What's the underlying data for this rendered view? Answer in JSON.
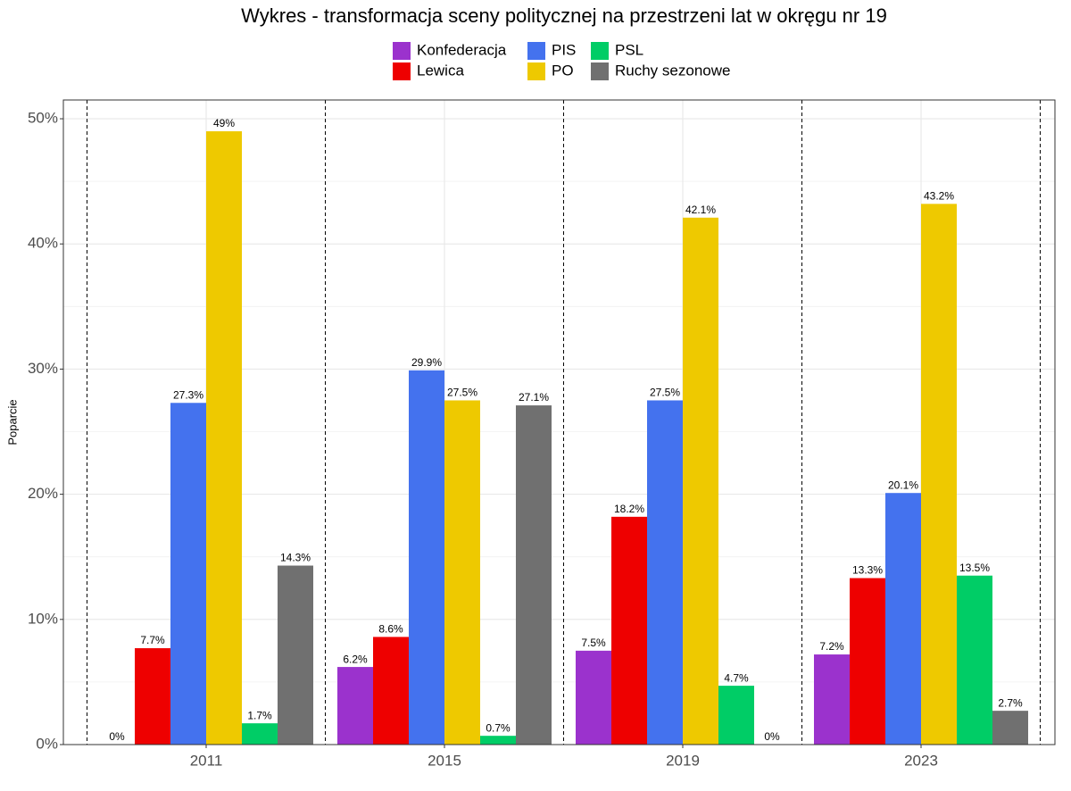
{
  "chart_data": {
    "type": "bar",
    "title": "Wykres - transformacja sceny politycznej na przestrzeni lat w okręgu nr 19",
    "y_label": "Poparcie",
    "categories": [
      "2011",
      "2015",
      "2019",
      "2023"
    ],
    "series": [
      {
        "name": "Konfederacja",
        "color": "#9b32cd",
        "values": [
          0,
          6.2,
          7.5,
          7.2
        ],
        "value_labels": [
          "0%",
          "6.2%",
          "7.5%",
          "7.2%"
        ]
      },
      {
        "name": "Lewica",
        "color": "#ee0000",
        "values": [
          7.7,
          8.6,
          18.2,
          13.3
        ],
        "value_labels": [
          "7.7%",
          "8.6%",
          "18.2%",
          "13.3%"
        ]
      },
      {
        "name": "PIS",
        "color": "#4472ee",
        "values": [
          27.3,
          29.9,
          27.5,
          20.1
        ],
        "value_labels": [
          "27.3%",
          "29.9%",
          "27.5%",
          "20.1%"
        ]
      },
      {
        "name": "PO",
        "color": "#eec900",
        "values": [
          49,
          27.5,
          42.1,
          43.2
        ],
        "value_labels": [
          "49%",
          "27.5%",
          "42.1%",
          "43.2%"
        ]
      },
      {
        "name": "PSL",
        "color": "#00cd66",
        "values": [
          1.7,
          0.7,
          4.7,
          13.5
        ],
        "value_labels": [
          "1.7%",
          "0.7%",
          "4.7%",
          "13.5%"
        ]
      },
      {
        "name": "Ruchy sezonowe",
        "color": "#707070",
        "values": [
          14.3,
          27.1,
          0,
          2.7
        ],
        "value_labels": [
          "14.3%",
          "27.1%",
          "0%",
          "2.7%"
        ]
      }
    ],
    "ylim": [
      0,
      51.5
    ],
    "yticks": [
      {
        "value": 0,
        "label": "0%"
      },
      {
        "value": 10,
        "label": "10%"
      },
      {
        "value": 20,
        "label": "20%"
      },
      {
        "value": 30,
        "label": "30%"
      },
      {
        "value": 40,
        "label": "40%"
      },
      {
        "value": 50,
        "label": "50%"
      }
    ],
    "minor_yticks": [
      5,
      15,
      25,
      35,
      45
    ],
    "grid": true
  }
}
